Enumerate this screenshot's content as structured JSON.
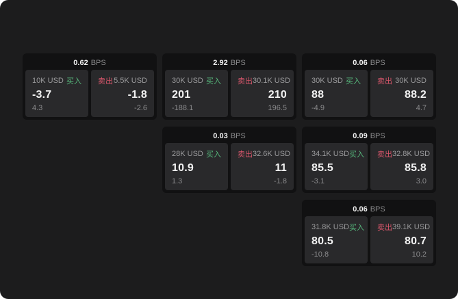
{
  "labels": {
    "bps": "BPS",
    "buy": "买入",
    "sell": "卖出"
  },
  "colors": {
    "window_bg": "#1c1c1d",
    "card_bg": "#111112",
    "panel_bg": "#29292b",
    "buy_green": "#56b87c",
    "sell_red": "#d8566b",
    "value_white": "#f2f2f2",
    "muted_gray": "#8a8a8c"
  },
  "cards": [
    {
      "bps": "0.62",
      "buy": {
        "amount": "10K USD",
        "price": "-3.7",
        "sub": "4.3"
      },
      "sell": {
        "amount": "5.5K USD",
        "price": "-1.8",
        "sub": "-2.6"
      }
    },
    {
      "bps": "2.92",
      "buy": {
        "amount": "30K USD",
        "price": "201",
        "sub": "-188.1"
      },
      "sell": {
        "amount": "30.1K USD",
        "price": "210",
        "sub": "196.5"
      }
    },
    {
      "bps": "0.06",
      "buy": {
        "amount": "30K USD",
        "price": "88",
        "sub": "-4.9"
      },
      "sell": {
        "amount": "30K USD",
        "price": "88.2",
        "sub": "4.7"
      }
    },
    {
      "bps": "0.03",
      "buy": {
        "amount": "28K USD",
        "price": "10.9",
        "sub": "1.3"
      },
      "sell": {
        "amount": "32.6K USD",
        "price": "11",
        "sub": "-1.8"
      }
    },
    {
      "bps": "0.09",
      "buy": {
        "amount": "34.1K USD",
        "price": "85.5",
        "sub": "-3.1"
      },
      "sell": {
        "amount": "32.8K USD",
        "price": "85.8",
        "sub": "3.0"
      }
    },
    {
      "bps": "0.06",
      "buy": {
        "amount": "31.8K USD",
        "price": "80.5",
        "sub": "-10.8"
      },
      "sell": {
        "amount": "39.1K USD",
        "price": "80.7",
        "sub": "10.2"
      }
    }
  ]
}
